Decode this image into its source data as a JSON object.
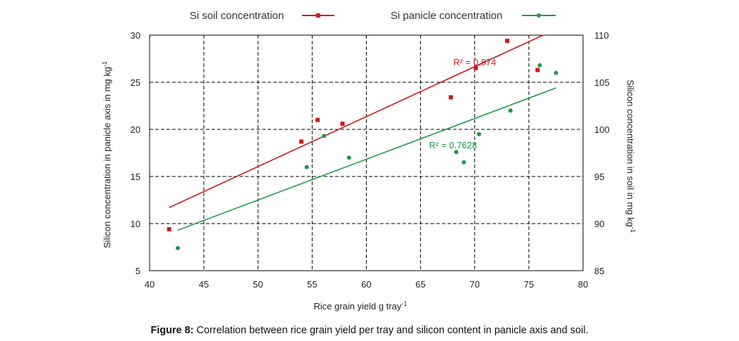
{
  "chart_data": {
    "type": "scatter",
    "x_axis": {
      "label": "Rice grain yield g tray",
      "label_sup": "-1",
      "lim": [
        40,
        80
      ],
      "ticks": [
        "40",
        "45",
        "50",
        "55",
        "60",
        "65",
        "70",
        "75",
        "80"
      ]
    },
    "y_left": {
      "label": "Silicon concentration in panicle axis in mg kg",
      "label_sup": "-1",
      "lim": [
        5,
        30
      ],
      "ticks": [
        "5",
        "10",
        "15",
        "20",
        "25",
        "30"
      ]
    },
    "y_right": {
      "label": "Silicon concentration in soil in mg kg",
      "label_sup": "-1",
      "lim": [
        85,
        110
      ],
      "ticks": [
        "85",
        "90",
        "95",
        "100",
        "105",
        "110"
      ]
    },
    "grid": true,
    "legend_position": "top",
    "series": [
      {
        "name": "Si soil concentration",
        "axis": "right",
        "color": "#d0191e",
        "marker": "square",
        "x": [
          41.8,
          54.0,
          55.5,
          57.8,
          67.8,
          70.1,
          73.0,
          75.8
        ],
        "y": [
          89.4,
          98.7,
          101.0,
          100.6,
          103.4,
          106.5,
          109.4,
          106.3
        ],
        "trendline": {
          "x": [
            41.8,
            76.3
          ],
          "y": [
            91.7,
            110.0
          ]
        },
        "r2_label": "R² = 0.874"
      },
      {
        "name": "Si panicle concentration",
        "axis": "left",
        "color": "#1a9a47",
        "marker": "circle",
        "x": [
          42.6,
          54.5,
          56.1,
          58.4,
          68.3,
          69.0,
          70.4,
          73.3,
          76.0,
          77.5
        ],
        "y": [
          7.4,
          16.0,
          19.3,
          17.0,
          17.6,
          16.5,
          19.5,
          22.0,
          26.8,
          26.0
        ],
        "trendline": {
          "x": [
            42.6,
            77.5
          ],
          "y": [
            9.3,
            24.4
          ]
        },
        "r2_label": "R² = 0.7628"
      }
    ]
  },
  "caption": {
    "label": "Figure 8:",
    "text": " Correlation between rice grain yield per tray and silicon content in panicle axis and soil."
  }
}
